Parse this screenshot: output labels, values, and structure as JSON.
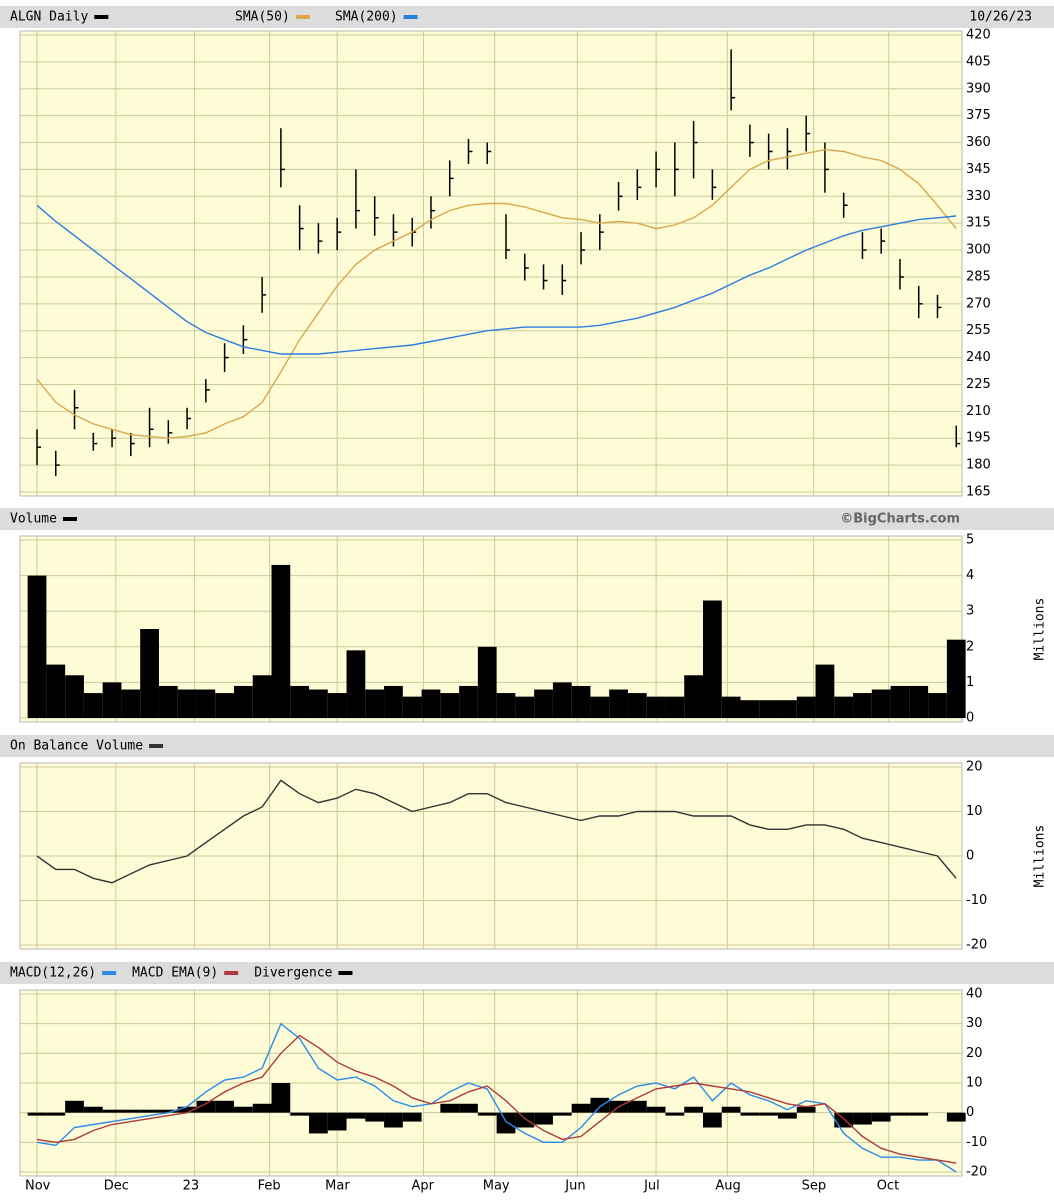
{
  "chart_data": [
    {
      "type": "ohlc",
      "title": "ALGN Daily",
      "date": "10/26/23",
      "x": [
        4,
        9,
        14,
        19,
        24,
        29,
        34,
        39,
        44,
        49,
        54,
        59,
        64,
        69,
        74,
        79,
        84,
        89,
        94,
        99,
        104,
        109,
        114,
        119,
        124,
        129,
        134,
        139,
        144,
        149,
        154,
        159,
        164,
        169,
        174,
        179,
        184,
        189,
        194,
        199,
        204,
        209,
        214,
        219,
        224,
        229,
        234,
        239,
        244,
        249
      ],
      "xlim": [
        0,
        250
      ],
      "ylim": [
        165,
        420
      ],
      "yticks": [
        165,
        180,
        195,
        210,
        225,
        240,
        255,
        270,
        285,
        300,
        315,
        330,
        345,
        360,
        375,
        390,
        405,
        420
      ],
      "grid": true,
      "series": [
        {
          "name": "ALGN Daily",
          "type": "ohlc",
          "color": "#000000",
          "high": [
            200,
            188,
            222,
            198,
            200,
            198,
            212,
            205,
            212,
            228,
            248,
            258,
            285,
            368,
            325,
            315,
            318,
            345,
            330,
            320,
            318,
            330,
            350,
            362,
            360,
            320,
            298,
            292,
            292,
            310,
            320,
            338,
            345,
            355,
            360,
            372,
            345,
            412,
            370,
            365,
            368,
            375,
            360,
            332,
            310,
            312,
            295,
            280,
            275,
            202
          ],
          "low": [
            180,
            174,
            200,
            188,
            190,
            185,
            190,
            192,
            200,
            215,
            232,
            242,
            265,
            335,
            300,
            298,
            300,
            312,
            308,
            302,
            302,
            312,
            330,
            348,
            348,
            295,
            283,
            278,
            275,
            292,
            300,
            322,
            328,
            335,
            330,
            340,
            328,
            378,
            352,
            345,
            345,
            355,
            332,
            318,
            295,
            298,
            278,
            262,
            262,
            190
          ],
          "close": [
            190,
            180,
            212,
            192,
            195,
            192,
            200,
            198,
            206,
            222,
            240,
            250,
            275,
            345,
            312,
            305,
            310,
            322,
            318,
            310,
            310,
            322,
            340,
            355,
            355,
            300,
            290,
            283,
            283,
            300,
            310,
            330,
            335,
            345,
            345,
            360,
            335,
            385,
            360,
            355,
            355,
            365,
            345,
            325,
            300,
            305,
            285,
            270,
            268,
            192
          ]
        },
        {
          "name": "SMA(50)",
          "type": "line",
          "color": "#d9a84e",
          "values": [
            228,
            215,
            208,
            203,
            200,
            197,
            196,
            195,
            196,
            198,
            203,
            207,
            215,
            232,
            250,
            265,
            280,
            292,
            300,
            305,
            310,
            317,
            322,
            325,
            326,
            326,
            324,
            321,
            318,
            317,
            315,
            316,
            315,
            312,
            314,
            318,
            325,
            335,
            345,
            350,
            352,
            354,
            356,
            355,
            352,
            350,
            345,
            337,
            325,
            312
          ]
        },
        {
          "name": "SMA(200)",
          "type": "line",
          "color": "#2a7de1",
          "values": [
            325,
            316,
            308,
            300,
            292,
            284,
            276,
            268,
            260,
            254,
            250,
            246,
            244,
            242,
            242,
            242,
            243,
            244,
            245,
            246,
            247,
            249,
            251,
            253,
            255,
            256,
            257,
            257,
            257,
            257,
            258,
            260,
            262,
            265,
            268,
            272,
            276,
            281,
            286,
            290,
            295,
            300,
            304,
            308,
            311,
            313,
            315,
            317,
            318,
            319
          ]
        }
      ]
    },
    {
      "type": "bar",
      "watermark": "©BigCharts.com",
      "y_label": "Millions",
      "x": [
        4,
        9,
        14,
        19,
        24,
        29,
        34,
        39,
        44,
        49,
        54,
        59,
        64,
        69,
        74,
        79,
        84,
        89,
        94,
        99,
        104,
        109,
        114,
        119,
        124,
        129,
        134,
        139,
        144,
        149,
        154,
        159,
        164,
        169,
        174,
        179,
        184,
        189,
        194,
        199,
        204,
        209,
        214,
        219,
        224,
        229,
        234,
        239,
        244,
        249
      ],
      "xlim": [
        0,
        250
      ],
      "ylim": [
        0,
        5
      ],
      "yticks": [
        0,
        1,
        2,
        3,
        4,
        5
      ],
      "grid": true,
      "series": [
        {
          "name": "Volume",
          "type": "bar",
          "color": "#000000",
          "values": [
            4.0,
            1.5,
            1.2,
            0.7,
            1.0,
            0.8,
            2.5,
            0.9,
            0.8,
            0.8,
            0.7,
            0.9,
            1.2,
            4.3,
            0.9,
            0.8,
            0.7,
            1.9,
            0.8,
            0.9,
            0.6,
            0.8,
            0.7,
            0.9,
            2.0,
            0.7,
            0.6,
            0.8,
            1.0,
            0.9,
            0.6,
            0.8,
            0.7,
            0.6,
            0.6,
            1.2,
            3.3,
            0.6,
            0.5,
            0.5,
            0.5,
            0.6,
            1.5,
            0.6,
            0.7,
            0.8,
            0.9,
            0.9,
            0.7,
            2.2
          ]
        }
      ]
    },
    {
      "type": "line",
      "y_label": "Millions",
      "x": [
        4,
        9,
        14,
        19,
        24,
        29,
        34,
        39,
        44,
        49,
        54,
        59,
        64,
        69,
        74,
        79,
        84,
        89,
        94,
        99,
        104,
        109,
        114,
        119,
        124,
        129,
        134,
        139,
        144,
        149,
        154,
        159,
        164,
        169,
        174,
        179,
        184,
        189,
        194,
        199,
        204,
        209,
        214,
        219,
        224,
        229,
        234,
        239,
        244,
        249
      ],
      "xlim": [
        0,
        250
      ],
      "ylim": [
        -20,
        20
      ],
      "yticks": [
        -20,
        -10,
        0,
        10,
        20
      ],
      "grid": true,
      "series": [
        {
          "name": "On Balance Volume",
          "type": "line",
          "color": "#333333",
          "values": [
            0,
            -3,
            -3,
            -5,
            -6,
            -4,
            -2,
            -1,
            0,
            3,
            6,
            9,
            11,
            17,
            14,
            12,
            13,
            15,
            14,
            12,
            10,
            11,
            12,
            14,
            14,
            12,
            11,
            10,
            9,
            8,
            9,
            9,
            10,
            10,
            10,
            9,
            9,
            9,
            7,
            6,
            6,
            7,
            7,
            6,
            4,
            3,
            2,
            1,
            0,
            -5
          ]
        }
      ]
    },
    {
      "type": "line",
      "x": [
        4,
        9,
        14,
        19,
        24,
        29,
        34,
        39,
        44,
        49,
        54,
        59,
        64,
        69,
        74,
        79,
        84,
        89,
        94,
        99,
        104,
        109,
        114,
        119,
        124,
        129,
        134,
        139,
        144,
        149,
        154,
        159,
        164,
        169,
        174,
        179,
        184,
        189,
        194,
        199,
        204,
        209,
        214,
        219,
        224,
        229,
        234,
        239,
        244,
        249
      ],
      "xlim": [
        0,
        250
      ],
      "ylim": [
        -20,
        40
      ],
      "yticks": [
        -20,
        -10,
        0,
        10,
        20,
        30,
        40
      ],
      "grid": true,
      "xticks": [
        {
          "value": 4,
          "label": "Nov"
        },
        {
          "value": 25,
          "label": "Dec"
        },
        {
          "value": 46,
          "label": "23"
        },
        {
          "value": 66,
          "label": "Feb"
        },
        {
          "value": 84,
          "label": "Mar"
        },
        {
          "value": 107,
          "label": "Apr"
        },
        {
          "value": 126,
          "label": "May"
        },
        {
          "value": 148,
          "label": "Jun"
        },
        {
          "value": 169,
          "label": "Jul"
        },
        {
          "value": 188,
          "label": "Aug"
        },
        {
          "value": 211,
          "label": "Sep"
        },
        {
          "value": 231,
          "label": "Oct"
        }
      ],
      "series": [
        {
          "name": "MACD(12,26)",
          "type": "line",
          "color": "#2b8be6",
          "values": [
            -10,
            -11,
            -5,
            -4,
            -3,
            -2,
            -1,
            0,
            2,
            7,
            11,
            12,
            15,
            30,
            25,
            15,
            11,
            12,
            9,
            4,
            2,
            3,
            7,
            10,
            8,
            -3,
            -7,
            -10,
            -10,
            -5,
            2,
            6,
            9,
            10,
            8,
            12,
            4,
            10,
            6,
            4,
            1,
            4,
            3,
            -7,
            -12,
            -15,
            -15,
            -16,
            -16,
            -20
          ]
        },
        {
          "name": "MACD EMA(9)",
          "type": "line",
          "color": "#b03a3a",
          "values": [
            -9,
            -10,
            -9,
            -6,
            -4,
            -3,
            -2,
            -1,
            0,
            3,
            7,
            10,
            12,
            20,
            26,
            22,
            17,
            14,
            12,
            9,
            5,
            3,
            4,
            7,
            9,
            4,
            -2,
            -6,
            -9,
            -8,
            -3,
            2,
            5,
            8,
            9,
            10,
            9,
            8,
            7,
            5,
            3,
            2,
            3,
            -2,
            -8,
            -12,
            -14,
            -15,
            -16,
            -17
          ]
        },
        {
          "name": "Divergence",
          "type": "bar",
          "color": "#000000",
          "values": [
            -1,
            -1,
            4,
            2,
            1,
            1,
            1,
            1,
            2,
            4,
            4,
            2,
            3,
            10,
            -1,
            -7,
            -6,
            -2,
            -3,
            -5,
            -3,
            0,
            3,
            3,
            -1,
            -7,
            -5,
            -4,
            -1,
            3,
            5,
            4,
            4,
            2,
            -1,
            2,
            -5,
            2,
            -1,
            -1,
            -2,
            2,
            0,
            -5,
            -4,
            -3,
            -1,
            -1,
            0,
            -3
          ]
        }
      ]
    }
  ]
}
